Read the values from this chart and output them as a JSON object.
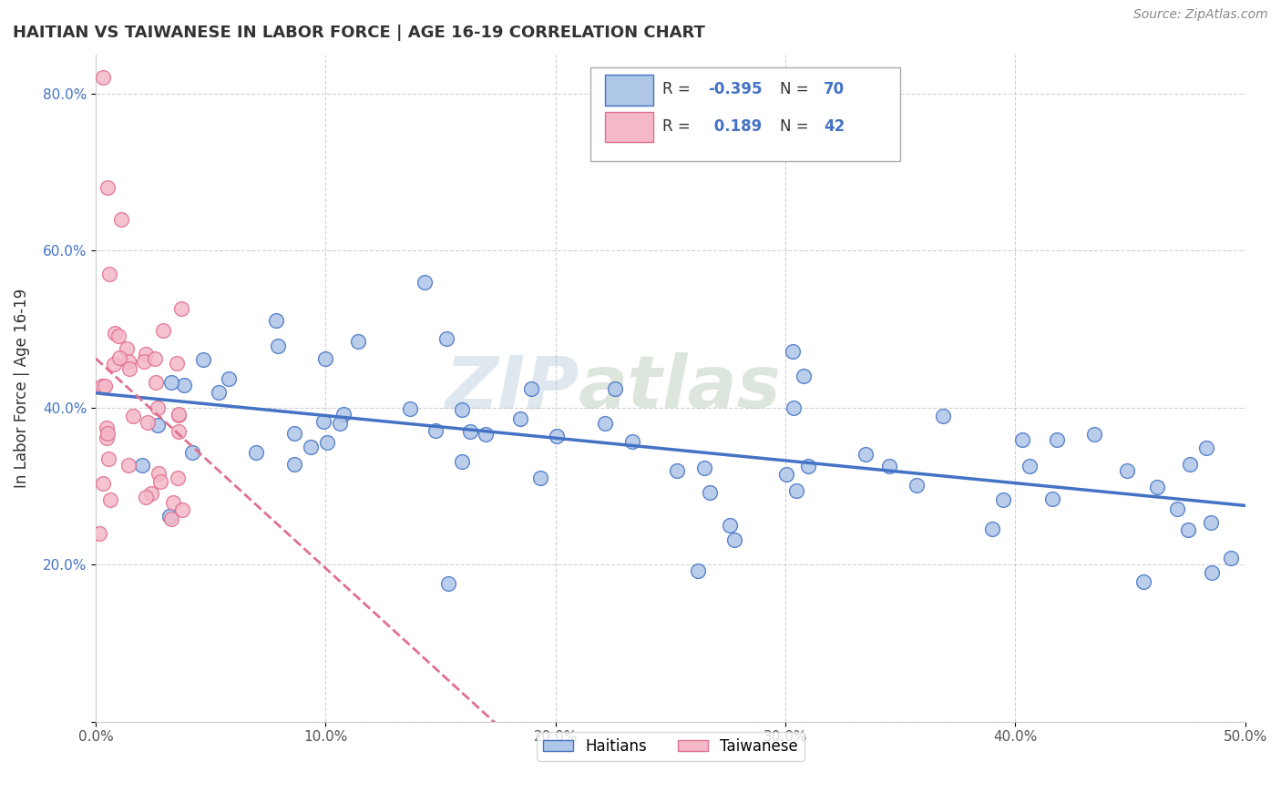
{
  "title": "HAITIAN VS TAIWANESE IN LABOR FORCE | AGE 16-19 CORRELATION CHART",
  "source_text": "Source: ZipAtlas.com",
  "ylabel": "In Labor Force | Age 16-19",
  "xlim": [
    0.0,
    0.5
  ],
  "ylim": [
    0.0,
    0.85
  ],
  "xticks": [
    0.0,
    0.1,
    0.2,
    0.3,
    0.4,
    0.5
  ],
  "xtick_labels": [
    "0.0%",
    "10.0%",
    "20.0%",
    "30.0%",
    "40.0%",
    "50.0%"
  ],
  "yticks": [
    0.0,
    0.2,
    0.4,
    0.6,
    0.8
  ],
  "ytick_labels": [
    "",
    "20.0%",
    "40.0%",
    "60.0%",
    "80.0%"
  ],
  "haitian_color": "#aec6e8",
  "taiwanese_color": "#f4b8c8",
  "haitian_line_color": "#4472c4",
  "taiwanese_line_color": "#e07090",
  "haitian_R": -0.395,
  "haitian_N": 70,
  "taiwanese_R": 0.189,
  "taiwanese_N": 42,
  "watermark_zip": "ZIP",
  "watermark_atlas": "atlas",
  "background_color": "#ffffff",
  "grid_color": "#cccccc",
  "title_color": "#333333",
  "source_color": "#888888",
  "legend_text_color": "#333333",
  "legend_value_color": "#4472c4"
}
